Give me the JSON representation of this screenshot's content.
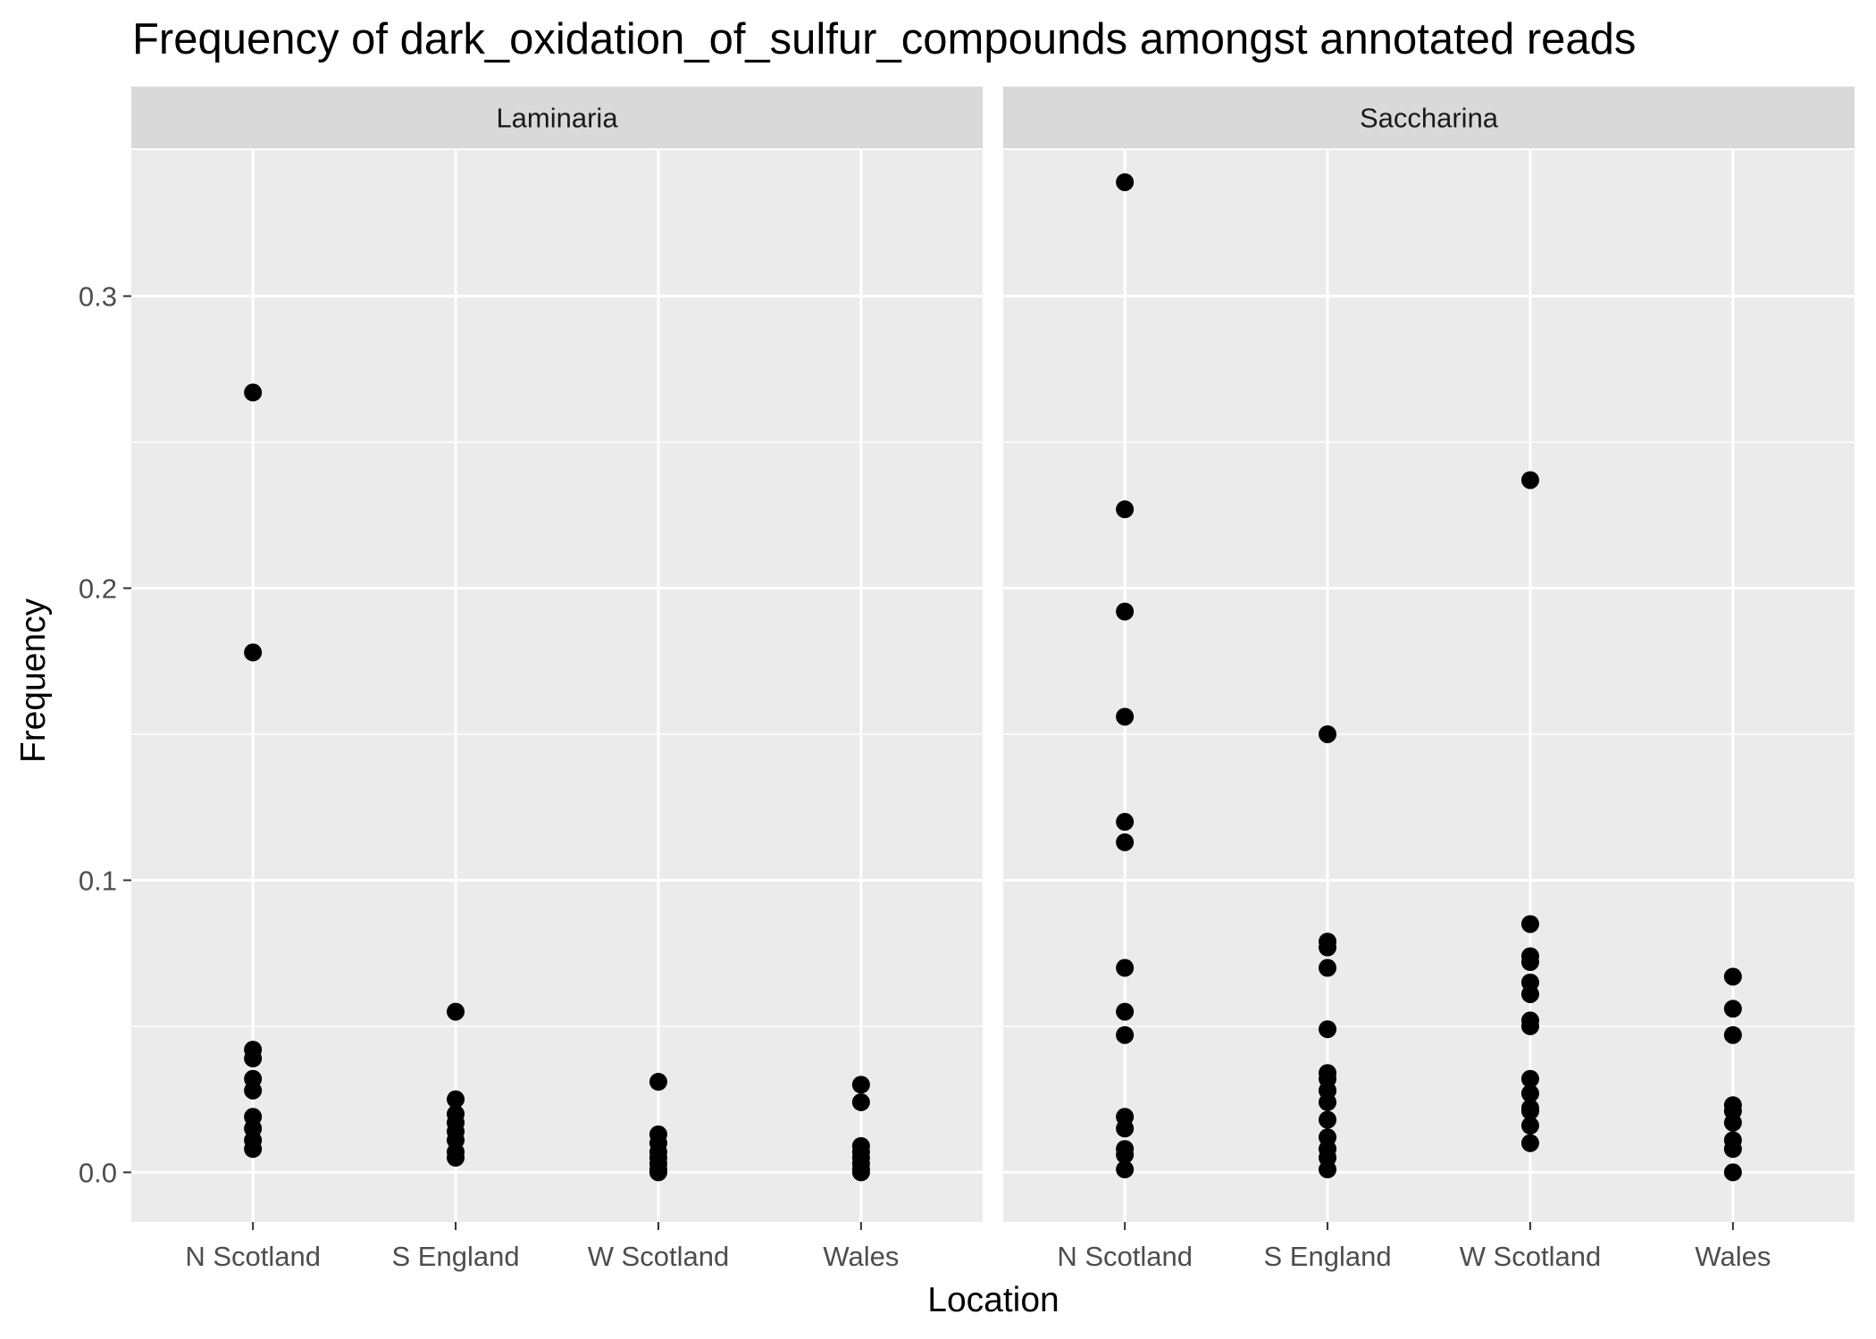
{
  "chart_data": {
    "type": "scatter",
    "title": "Frequency of dark_oxidation_of_sulfur_compounds amongst annotated reads",
    "xlabel": "Location",
    "ylabel": "Frequency",
    "categories": [
      "N Scotland",
      "S England",
      "W Scotland",
      "Wales"
    ],
    "ylim": [
      -0.017,
      0.35
    ],
    "yticks": [
      0.0,
      0.1,
      0.2,
      0.3
    ],
    "ytick_labels": [
      "0.0",
      "0.1",
      "0.2",
      "0.3"
    ],
    "grid": true,
    "facets": [
      {
        "name": "Laminaria",
        "points": {
          "N Scotland": [
            0.267,
            0.178,
            0.042,
            0.039,
            0.032,
            0.028,
            0.019,
            0.015,
            0.011,
            0.008
          ],
          "S England": [
            0.055,
            0.025,
            0.02,
            0.017,
            0.014,
            0.011,
            0.007,
            0.005
          ],
          "W Scotland": [
            0.031,
            0.013,
            0.01,
            0.007,
            0.005,
            0.003,
            0.001,
            0.0
          ],
          "Wales": [
            0.03,
            0.024,
            0.009,
            0.007,
            0.005,
            0.003,
            0.001,
            0.0
          ]
        }
      },
      {
        "name": "Saccharina",
        "points": {
          "N Scotland": [
            0.339,
            0.227,
            0.192,
            0.156,
            0.12,
            0.113,
            0.07,
            0.055,
            0.047,
            0.019,
            0.015,
            0.008,
            0.006,
            0.001
          ],
          "S England": [
            0.15,
            0.079,
            0.077,
            0.07,
            0.049,
            0.034,
            0.032,
            0.028,
            0.024,
            0.018,
            0.012,
            0.008,
            0.005,
            0.001
          ],
          "W Scotland": [
            0.237,
            0.085,
            0.074,
            0.072,
            0.065,
            0.061,
            0.052,
            0.05,
            0.032,
            0.027,
            0.022,
            0.021,
            0.016,
            0.01
          ],
          "Wales": [
            0.067,
            0.056,
            0.047,
            0.023,
            0.021,
            0.017,
            0.011,
            0.008,
            0.0
          ]
        }
      }
    ]
  },
  "colors": {
    "panel_background": "#ebebeb",
    "grid": "#ffffff",
    "strip_background": "#d9d9d9",
    "point": "#000000",
    "tick": "#333333"
  }
}
